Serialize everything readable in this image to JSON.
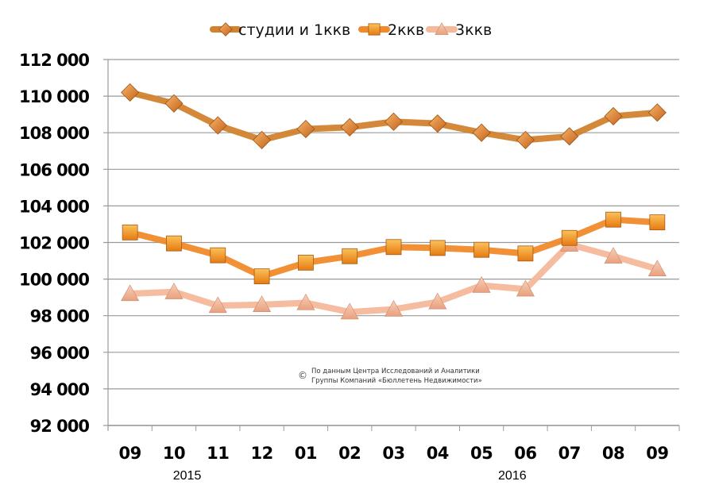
{
  "chart_data": {
    "type": "line",
    "title": "",
    "xlabel": "",
    "ylabel": "",
    "categories": [
      "09",
      "10",
      "11",
      "12",
      "01",
      "02",
      "03",
      "04",
      "05",
      "06",
      "07",
      "08",
      "09"
    ],
    "year_labels": [
      {
        "label": "2015",
        "category_index": 1.3
      },
      {
        "label": "2016",
        "category_index": 8.7
      }
    ],
    "ylim": [
      92000,
      112000
    ],
    "yticks": [
      92000,
      94000,
      96000,
      98000,
      100000,
      102000,
      104000,
      106000,
      108000,
      110000,
      112000
    ],
    "ytick_labels": [
      "92 000",
      "94 000",
      "96 000",
      "98 000",
      "100 000",
      "102 000",
      "104 000",
      "106 000",
      "108 000",
      "110 000",
      "112 000"
    ],
    "grid": true,
    "legend_position": "top-center",
    "series": [
      {
        "name": "студии и 1ккв",
        "marker": "diamond",
        "color": "#d2822e",
        "marker_color": "#e07b1e",
        "values": [
          110200,
          109600,
          108400,
          107600,
          108200,
          108300,
          108600,
          108500,
          108000,
          107600,
          107800,
          108900,
          109100
        ]
      },
      {
        "name": "2ккв",
        "marker": "square",
        "color": "#f08a2a",
        "marker_color": "#f39a1e",
        "values": [
          102550,
          101950,
          101300,
          100150,
          100900,
          101250,
          101750,
          101700,
          101600,
          101400,
          102250,
          103250,
          103100
        ]
      },
      {
        "name": "3ккв",
        "marker": "triangle",
        "color": "#f4b89a",
        "marker_color": "#eea88a",
        "values": [
          99200,
          99300,
          98550,
          98600,
          98700,
          98200,
          98350,
          98750,
          99650,
          99450,
          101900,
          101250,
          100550
        ]
      }
    ],
    "annotation": {
      "symbol": "©",
      "lines": [
        "По данным Центра Исследований и Аналитики",
        "Группы Компаний «Бюллетень Недвижимости»"
      ]
    }
  }
}
